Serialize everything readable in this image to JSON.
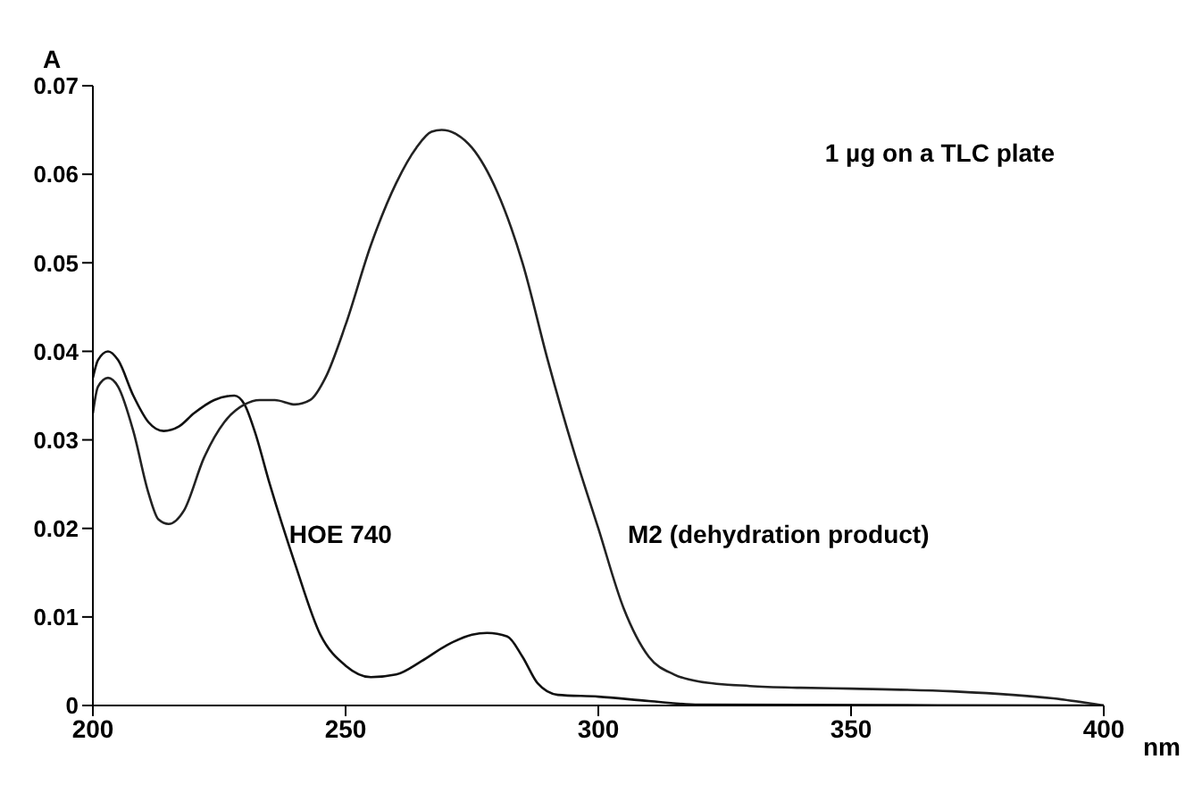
{
  "chart_data": {
    "type": "line",
    "xlabel": "nm",
    "ylabel": "A",
    "annotations": [
      "1 µg on a TLC plate"
    ],
    "xlim": [
      200,
      400
    ],
    "xticks": [
      200,
      250,
      300,
      350,
      400
    ],
    "ylim": [
      0,
      0.07
    ],
    "yticks": [
      0,
      0.01,
      0.02,
      0.03,
      0.04,
      0.05,
      0.06,
      0.07
    ],
    "grid": false,
    "legend": false,
    "marker": "none",
    "line_style": "solid",
    "series": [
      {
        "name": "HOE 740",
        "color": "#111111",
        "x": [
          200,
          201,
          203,
          205,
          208,
          211,
          214,
          217,
          220,
          224,
          228,
          230,
          232,
          235,
          240,
          245,
          250,
          255,
          260,
          265,
          270,
          275,
          278,
          282,
          285,
          288,
          292,
          300,
          310,
          320,
          400
        ],
        "values": [
          0.037,
          0.039,
          0.04,
          0.039,
          0.035,
          0.032,
          0.031,
          0.0315,
          0.033,
          0.0345,
          0.035,
          0.034,
          0.031,
          0.025,
          0.016,
          0.008,
          0.0045,
          0.0032,
          0.0035,
          0.005,
          0.0068,
          0.008,
          0.0082,
          0.0078,
          0.0055,
          0.0025,
          0.0012,
          0.001,
          0.0005,
          0.0001,
          0
        ]
      },
      {
        "name": "M2 (dehydration product)",
        "color": "#222222",
        "x": [
          200,
          201,
          203,
          205,
          208,
          211,
          213,
          215,
          218,
          222,
          226,
          230,
          233,
          236,
          240,
          243,
          246,
          250,
          255,
          260,
          264,
          267,
          269,
          272,
          275,
          280,
          285,
          290,
          295,
          300,
          305,
          310,
          315,
          320,
          330,
          340,
          350,
          370,
          390,
          400
        ],
        "values": [
          0.033,
          0.036,
          0.037,
          0.036,
          0.031,
          0.024,
          0.021,
          0.0205,
          0.022,
          0.028,
          0.032,
          0.034,
          0.0345,
          0.0345,
          0.034,
          0.0345,
          0.037,
          0.043,
          0.052,
          0.059,
          0.063,
          0.0648,
          0.065,
          0.0645,
          0.063,
          0.058,
          0.05,
          0.039,
          0.029,
          0.02,
          0.011,
          0.0055,
          0.0035,
          0.0027,
          0.0022,
          0.002,
          0.0019,
          0.0016,
          0.0008,
          0
        ]
      }
    ]
  }
}
